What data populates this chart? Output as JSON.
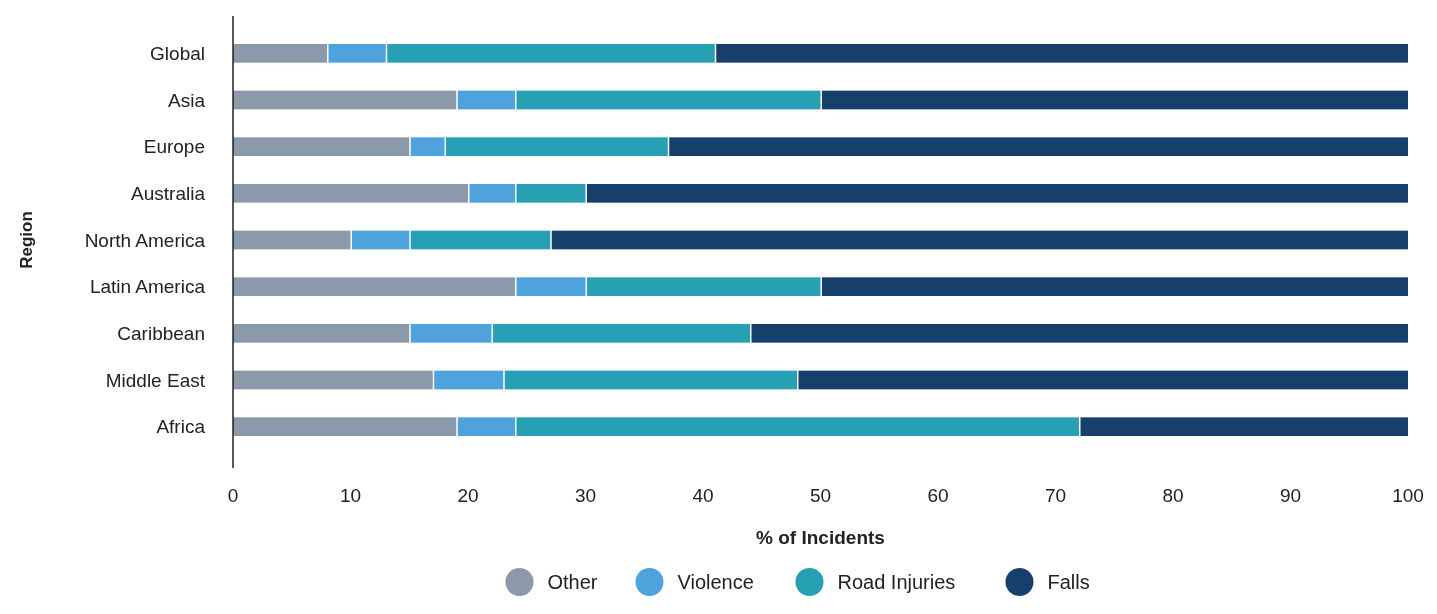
{
  "chart_data": {
    "type": "bar",
    "orientation": "horizontal",
    "stacked": true,
    "xlabel": "% of Incidents",
    "ylabel": "Region",
    "categories": [
      "Global",
      "Asia",
      "Europe",
      "Australia",
      "North America",
      "Latin America",
      "Caribbean",
      "Middle East",
      "Africa"
    ],
    "series": [
      {
        "name": "Other",
        "color": "#8a9aab",
        "values": [
          8,
          19,
          15,
          20,
          10,
          24,
          15,
          17,
          19
        ]
      },
      {
        "name": "Violence",
        "color": "#4fa3dc",
        "values": [
          5,
          5,
          3,
          4,
          5,
          6,
          7,
          6,
          5
        ]
      },
      {
        "name": "Road Injuries",
        "color": "#26a0b2",
        "values": [
          28,
          26,
          19,
          6,
          12,
          20,
          22,
          25,
          48
        ]
      },
      {
        "name": "Falls",
        "color": "#173f6b",
        "values": [
          59,
          50,
          63,
          70,
          73,
          50,
          56,
          52,
          28
        ]
      }
    ],
    "xlim": [
      0,
      100
    ],
    "xticks": [
      0,
      10,
      20,
      30,
      40,
      50,
      60,
      70,
      80,
      90,
      100
    ],
    "grid": false,
    "legend": "bottom"
  }
}
